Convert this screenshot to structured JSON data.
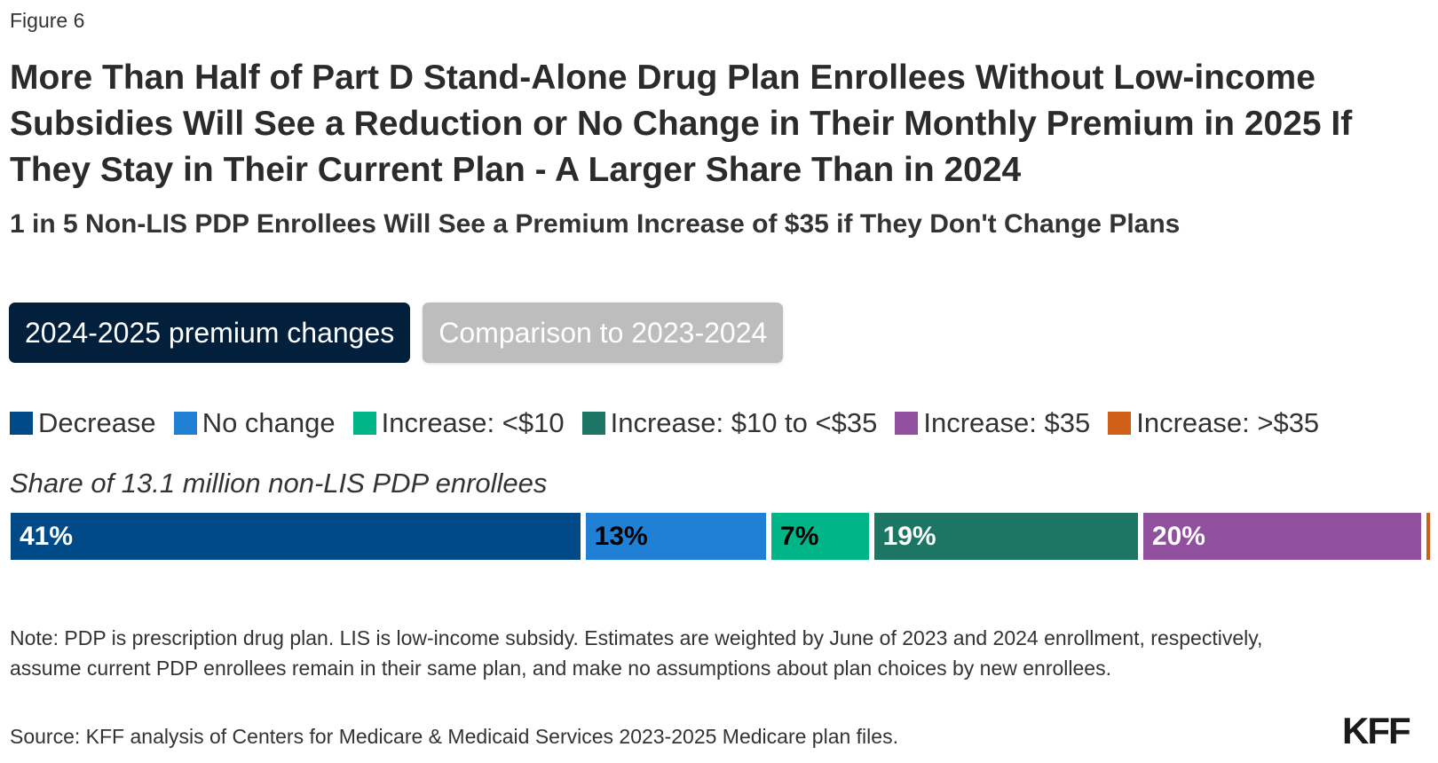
{
  "figure_label": "Figure 6",
  "title": "More Than Half of Part D Stand-Alone Drug Plan Enrollees Without Low-income Subsidies Will See a Reduction or No Change in Their Monthly Premium in 2025 If They Stay in Their Current Plan - A Larger Share Than in 2024",
  "subtitle": "1 in 5 Non-LIS PDP Enrollees Will See a Premium Increase of $35 if They Don't Change Plans",
  "tabs": [
    {
      "label": "2024-2025 premium changes",
      "active": true
    },
    {
      "label": "Comparison to 2023-2024",
      "active": false
    }
  ],
  "note": "Note: PDP is prescription drug plan. LIS is low-income subsidy. Estimates are weighted by June of 2023 and 2024 enrollment, respectively, assume current PDP enrollees remain in their same plan, and make no assumptions about plan choices by new enrollees.",
  "source": "Source: KFF analysis of Centers for Medicare & Medicaid Services 2023-2025 Medicare plan files.",
  "logo": "KFF",
  "chart_data": {
    "type": "bar",
    "orientation": "horizontal-stacked",
    "title": "More Than Half of Part D Stand-Alone Drug Plan Enrollees Without Low-income Subsidies Will See a Reduction or No Change in Their Monthly Premium in 2025 If They Stay in Their Current Plan - A Larger Share Than in 2024",
    "subtitle": "1 in 5 Non-LIS PDP Enrollees Will See a Premium Increase of $35 if They Don't Change Plans",
    "categories": [
      "Share of 13.1 million non-LIS PDP enrollees"
    ],
    "legend_position": "top",
    "xlim": [
      0,
      100
    ],
    "unit": "%",
    "series": [
      {
        "name": "Decrease",
        "values": [
          41
        ],
        "label": "41%",
        "color": "#004b87",
        "label_color": "#ffffff"
      },
      {
        "name": "No change",
        "values": [
          13
        ],
        "label": "13%",
        "color": "#1f80d6",
        "label_color": "#000000"
      },
      {
        "name": "Increase: <$10",
        "values": [
          7
        ],
        "label": "7%",
        "color": "#00b587",
        "label_color": "#000000"
      },
      {
        "name": "Increase: $10 to <$35",
        "values": [
          19
        ],
        "label": "19%",
        "color": "#1c7663",
        "label_color": "#ffffff"
      },
      {
        "name": "Increase: $35",
        "values": [
          20
        ],
        "label": "20%",
        "color": "#91509e",
        "label_color": "#ffffff"
      },
      {
        "name": "Increase: >$35",
        "values": [
          0.2
        ],
        "label": "",
        "color": "#d06017",
        "label_color": "#ffffff"
      }
    ]
  }
}
